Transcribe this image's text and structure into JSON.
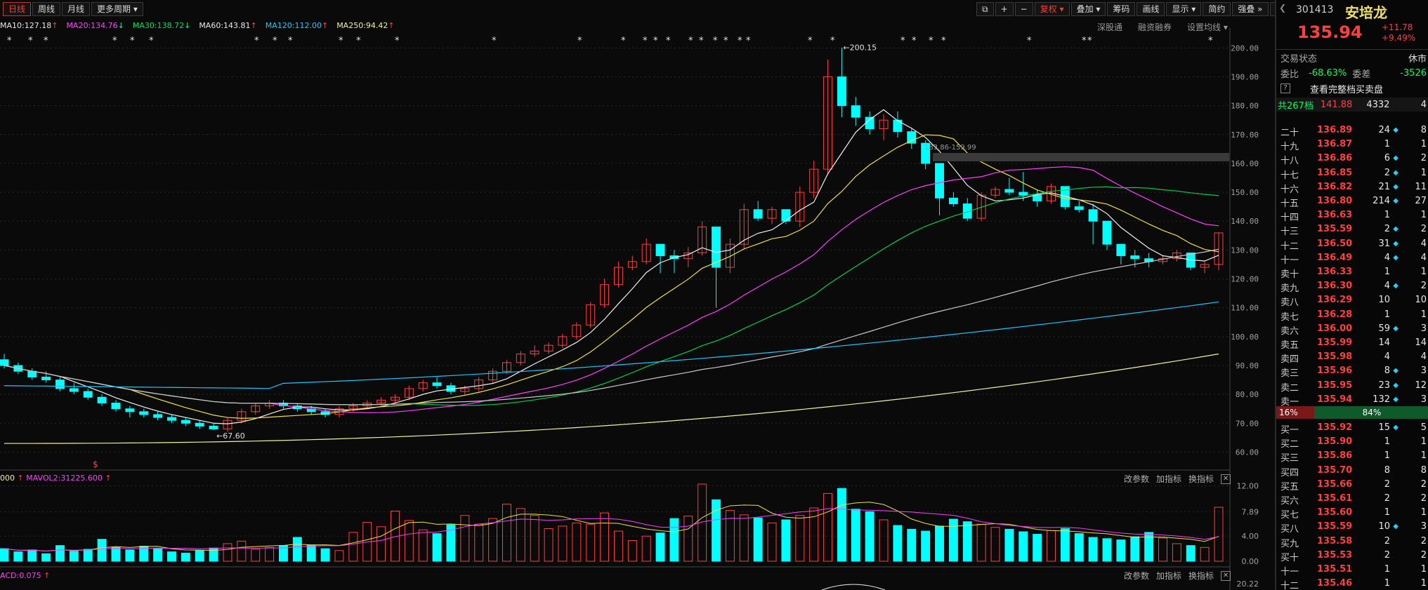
{
  "toolbar": {
    "periods": [
      "日线",
      "周线",
      "月线",
      "更多周期"
    ],
    "tools": [
      "复权",
      "叠加",
      "筹码",
      "画线",
      "显示",
      "简约",
      "强叠"
    ]
  },
  "ma_labels": [
    {
      "text": "MA10:127.18",
      "arrow": "↑",
      "color": "#e8e8e8"
    },
    {
      "text": "MA20:134.76",
      "arrow": "↓",
      "color": "#ff40ff"
    },
    {
      "text": "MA30:138.72",
      "arrow": "↓",
      "color": "#00e060"
    },
    {
      "text": "MA60:143.81",
      "arrow": "↑",
      "color": "#e8e8e8"
    },
    {
      "text": "MA120:112.00",
      "arrow": "↑",
      "color": "#20c8ff"
    },
    {
      "text": "MA250:94.42",
      "arrow": "↑",
      "color": "#f0f0a0"
    }
  ],
  "top_links": [
    "深股通",
    "融资融券",
    "设置均线"
  ],
  "volume_panel": {
    "label": "000",
    "mavol": "MAVOL2:31225.600",
    "tools": [
      "改参数",
      "加指标",
      "换指标"
    ],
    "y_ticks": [
      "12.00",
      "7.89",
      "4.00",
      "0.00"
    ]
  },
  "macd_panel": {
    "label": "ACD:0.075",
    "tools": [
      "改参数",
      "加指标",
      "换指标"
    ],
    "y_tick": "20.22"
  },
  "annotations": {
    "high": "200.15",
    "low": "67.60",
    "range": "183.86-159.99",
    "marker": "$"
  },
  "colors": {
    "up": "#ff4040",
    "down": "#00ffff",
    "bg": "#0a0a0a",
    "grid": "#2a2a2a"
  },
  "chart_data": {
    "type": "candlestick",
    "ylim": [
      55,
      203
    ],
    "y_ticks": [
      60,
      70,
      80,
      90,
      100,
      110,
      120,
      130,
      140,
      150,
      160,
      170,
      180,
      190,
      200
    ],
    "candles": [
      [
        92,
        94,
        90,
        89
      ],
      [
        90,
        91,
        88,
        87
      ],
      [
        88,
        89,
        86,
        85
      ],
      [
        86,
        88,
        85,
        84
      ],
      [
        85,
        86,
        82,
        81
      ],
      [
        82,
        84,
        81,
        80
      ],
      [
        81,
        82,
        79,
        78
      ],
      [
        79,
        80,
        77,
        76
      ],
      [
        77,
        78,
        75,
        74
      ],
      [
        75,
        76,
        74,
        72
      ],
      [
        74,
        75,
        73,
        72
      ],
      [
        73,
        74,
        72,
        71
      ],
      [
        72,
        73,
        71,
        70
      ],
      [
        71,
        72,
        70,
        69
      ],
      [
        70,
        71,
        69,
        68
      ],
      [
        69,
        70,
        68,
        67.6
      ],
      [
        68,
        72,
        71,
        67
      ],
      [
        71,
        75,
        74,
        70
      ],
      [
        74,
        77,
        76,
        73
      ],
      [
        76,
        78,
        77,
        75
      ],
      [
        77,
        78,
        76,
        75
      ],
      [
        76,
        77,
        75,
        74
      ],
      [
        75,
        76,
        74,
        73
      ],
      [
        74,
        75,
        73,
        72
      ],
      [
        73,
        76,
        75,
        72
      ],
      [
        75,
        77,
        76,
        74
      ],
      [
        76,
        78,
        77,
        75
      ],
      [
        77,
        79,
        78,
        76
      ],
      [
        78,
        80,
        79,
        77
      ],
      [
        79,
        83,
        82,
        78
      ],
      [
        82,
        85,
        84,
        81
      ],
      [
        84,
        86,
        83,
        82
      ],
      [
        83,
        84,
        81,
        80
      ],
      [
        81,
        83,
        82,
        80
      ],
      [
        82,
        86,
        85,
        81
      ],
      [
        85,
        89,
        88,
        84
      ],
      [
        88,
        92,
        91,
        87
      ],
      [
        91,
        95,
        94,
        90
      ],
      [
        94,
        97,
        95,
        93
      ],
      [
        95,
        98,
        97,
        94
      ],
      [
        97,
        101,
        100,
        96
      ],
      [
        100,
        105,
        104,
        99
      ],
      [
        104,
        112,
        111,
        103
      ],
      [
        111,
        120,
        118,
        110
      ],
      [
        118,
        126,
        124,
        117
      ],
      [
        124,
        128,
        126,
        123
      ],
      [
        126,
        134,
        132,
        125
      ],
      [
        132,
        130,
        128,
        122
      ],
      [
        128,
        130,
        127,
        122
      ],
      [
        127,
        131,
        129,
        124
      ],
      [
        129,
        140,
        138,
        128
      ],
      [
        138,
        136,
        124,
        110
      ],
      [
        124,
        134,
        132,
        122
      ],
      [
        132,
        146,
        144,
        130
      ],
      [
        144,
        147,
        141,
        140
      ],
      [
        141,
        145,
        144,
        139
      ],
      [
        144,
        143,
        140,
        139
      ],
      [
        140,
        152,
        150,
        138
      ],
      [
        150,
        161,
        158,
        148
      ],
      [
        158,
        196,
        190,
        156
      ],
      [
        190,
        200.15,
        180,
        176
      ],
      [
        180,
        183,
        176,
        173
      ],
      [
        176,
        178,
        172,
        170
      ],
      [
        172,
        177,
        175,
        168
      ],
      [
        175,
        178,
        171,
        169
      ],
      [
        171,
        172,
        167,
        165
      ],
      [
        167,
        168,
        160,
        158
      ],
      [
        160,
        156,
        148,
        142
      ],
      [
        148,
        150,
        146,
        145
      ],
      [
        146,
        148,
        141,
        140
      ],
      [
        141,
        150,
        149,
        140
      ],
      [
        149,
        152,
        151,
        148
      ],
      [
        151,
        155,
        150,
        149
      ],
      [
        150,
        157,
        149,
        147
      ],
      [
        149,
        151,
        147,
        145
      ],
      [
        147,
        153,
        152,
        146
      ],
      [
        152,
        151,
        145,
        144
      ],
      [
        145,
        147,
        144,
        143
      ],
      [
        144,
        146,
        140,
        132
      ],
      [
        140,
        137,
        132,
        130
      ],
      [
        132,
        130,
        128,
        125
      ],
      [
        128,
        130,
        127,
        124
      ],
      [
        127,
        129,
        126,
        124
      ],
      [
        126,
        128,
        127,
        125
      ],
      [
        127,
        130,
        129,
        126
      ],
      [
        129,
        127,
        124,
        123
      ],
      [
        124,
        126,
        125,
        122
      ],
      [
        125,
        136,
        135.94,
        123
      ]
    ],
    "volumes": [
      2.0,
      1.5,
      1.8,
      1.2,
      2.5,
      1.6,
      1.9,
      3.5,
      2.2,
      1.8,
      2.4,
      2.0,
      1.5,
      1.3,
      1.7,
      2.1,
      2.8,
      3.2,
      1.9,
      2.2,
      2.5,
      3.8,
      2.6,
      2.0,
      1.7,
      4.6,
      6.2,
      5.5,
      8.0,
      6.5,
      5.0,
      4.4,
      5.8,
      7.3,
      5.9,
      6.8,
      9.1,
      8.4,
      7.3,
      5.2,
      5.6,
      6.1,
      5.9,
      7.7,
      4.8,
      3.3,
      4.0,
      4.5,
      6.8,
      7.2,
      12.3,
      9.8,
      8.1,
      7.4,
      6.9,
      6.1,
      6.6,
      7.3,
      8.5,
      10.8,
      11.6,
      8.3,
      7.9,
      6.6,
      5.7,
      5.1,
      4.8,
      5.6,
      6.7,
      6.3,
      5.9,
      5.4,
      5.1,
      4.7,
      4.3,
      4.9,
      5.2,
      4.4,
      3.8,
      3.6,
      3.4,
      3.9,
      4.6,
      3.7,
      2.8,
      2.5,
      2.2,
      8.6
    ]
  }
}
